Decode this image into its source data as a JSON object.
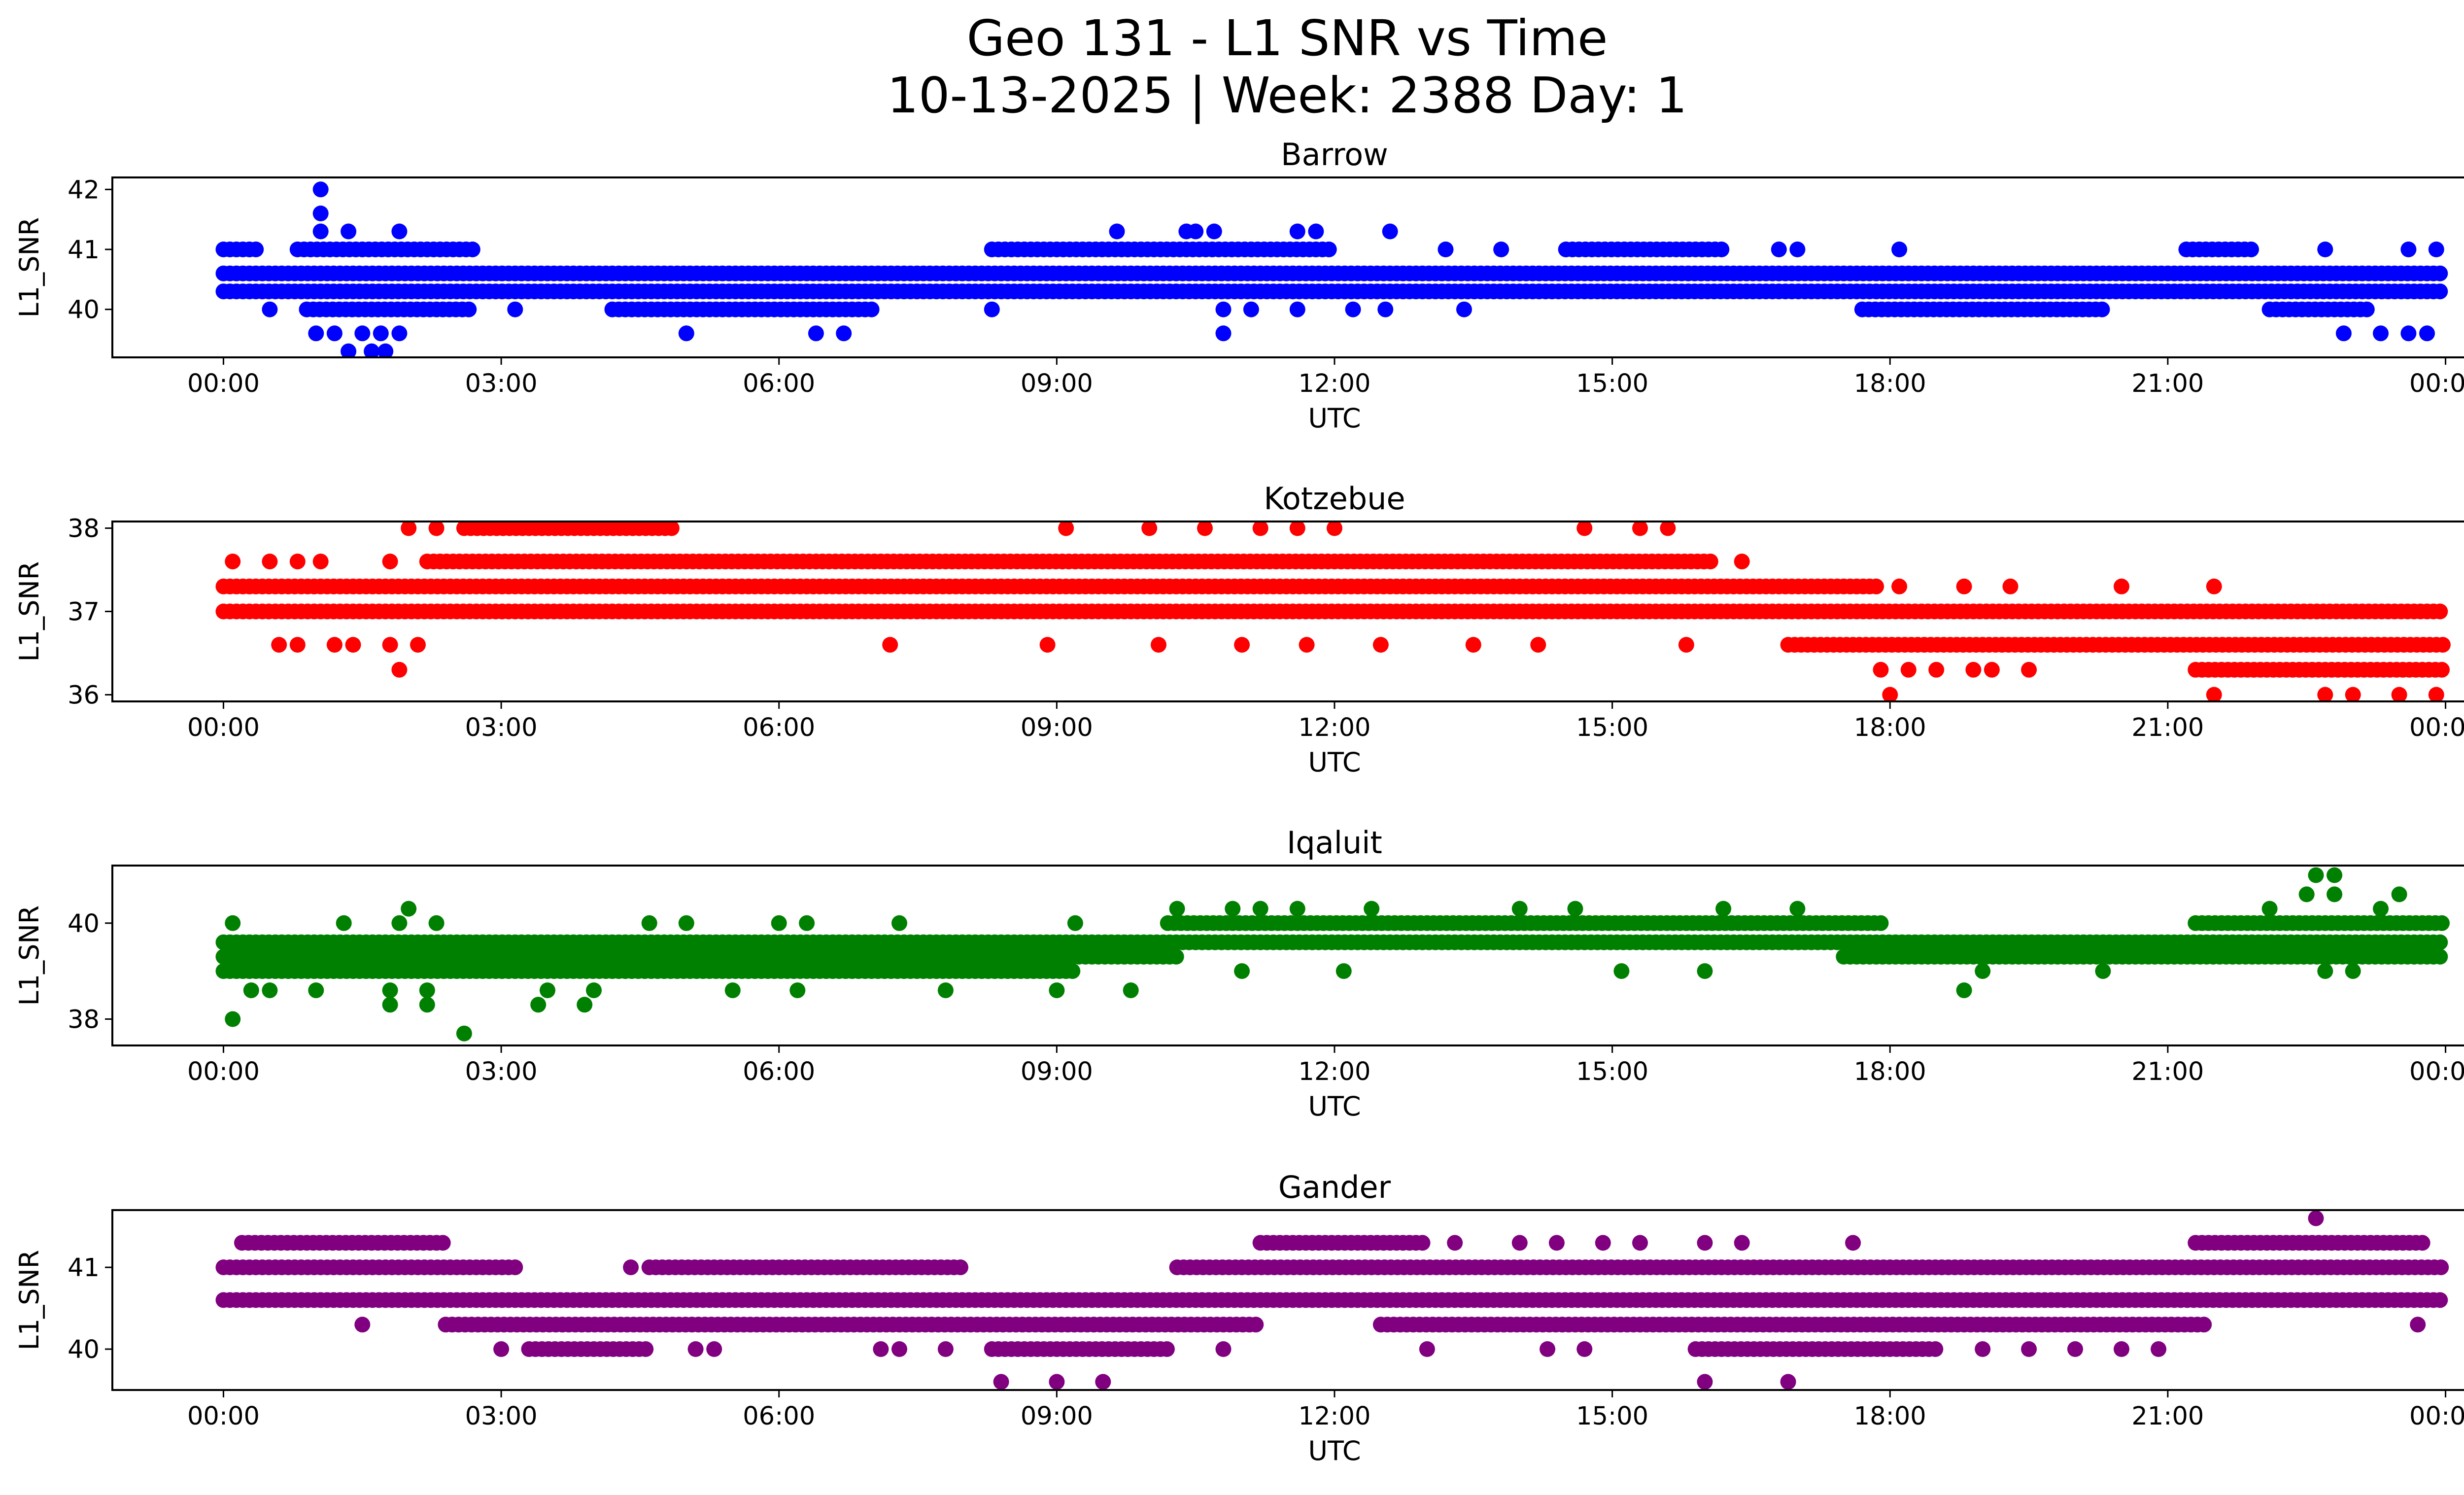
{
  "figure": {
    "title_line1": "Geo 131 - L1 SNR vs Time",
    "title_line2": "10-13-2025 | Week: 2388 Day: 1"
  },
  "chart_data": [
    {
      "type": "scatter",
      "title": "Barrow",
      "xlabel": "UTC",
      "ylabel": "L1_SNR",
      "color": "#0000ff",
      "xlim_hours": [
        -1.2,
        25.2
      ],
      "ylim": [
        39.2,
        42.2
      ],
      "xtick_hours": [
        0,
        3,
        6,
        9,
        12,
        15,
        18,
        21,
        24
      ],
      "xtick_labels": [
        "00:00",
        "03:00",
        "06:00",
        "09:00",
        "12:00",
        "15:00",
        "18:00",
        "21:00",
        "00:00"
      ],
      "yticks": [
        40,
        41,
        42
      ],
      "yticks_labels": [
        "40",
        "41",
        "42"
      ],
      "bands": [
        {
          "y": 40.6,
          "segments": [
            [
              0,
              24
            ]
          ]
        },
        {
          "y": 40.3,
          "segments": [
            [
              0,
              24
            ]
          ]
        },
        {
          "y": 41.0,
          "segments": [
            [
              0,
              0.4
            ],
            [
              0.8,
              2.7
            ],
            [
              8.3,
              12.0
            ],
            [
              14.5,
              16.2
            ],
            [
              21.2,
              21.9
            ]
          ]
        },
        {
          "y": 40.0,
          "segments": [
            [
              0.9,
              2.7
            ],
            [
              4.2,
              7.0
            ],
            [
              17.7,
              20.3
            ],
            [
              22.1,
              23.2
            ]
          ]
        }
      ],
      "points": [
        [
          1.05,
          42.0
        ],
        [
          1.05,
          41.6
        ],
        [
          1.05,
          41.3
        ],
        [
          1.35,
          41.3
        ],
        [
          1.9,
          41.3
        ],
        [
          9.65,
          41.3
        ],
        [
          10.4,
          41.3
        ],
        [
          10.5,
          41.3
        ],
        [
          10.7,
          41.3
        ],
        [
          11.6,
          41.3
        ],
        [
          11.8,
          41.3
        ],
        [
          12.6,
          41.3
        ],
        [
          0.5,
          40.0
        ],
        [
          3.15,
          40.0
        ],
        [
          10.8,
          40.0
        ],
        [
          11.1,
          40.0
        ],
        [
          11.6,
          40.0
        ],
        [
          12.2,
          40.0
        ],
        [
          12.55,
          40.0
        ],
        [
          13.4,
          40.0
        ],
        [
          8.3,
          40.0
        ],
        [
          13.2,
          41.0
        ],
        [
          13.8,
          41.0
        ],
        [
          16.8,
          41.0
        ],
        [
          17.0,
          41.0
        ],
        [
          18.1,
          41.0
        ],
        [
          22.7,
          41.0
        ],
        [
          23.6,
          41.0
        ],
        [
          23.9,
          41.0
        ],
        [
          1.0,
          39.6
        ],
        [
          1.2,
          39.6
        ],
        [
          1.5,
          39.6
        ],
        [
          1.7,
          39.6
        ],
        [
          1.9,
          39.6
        ],
        [
          5.0,
          39.6
        ],
        [
          6.4,
          39.6
        ],
        [
          6.7,
          39.6
        ],
        [
          10.8,
          39.6
        ],
        [
          22.9,
          39.6
        ],
        [
          23.3,
          39.6
        ],
        [
          23.6,
          39.6
        ],
        [
          23.8,
          39.6
        ],
        [
          1.35,
          39.3
        ],
        [
          1.6,
          39.3
        ],
        [
          1.75,
          39.3
        ]
      ]
    },
    {
      "type": "scatter",
      "title": "Kotzebue",
      "xlabel": "UTC",
      "ylabel": "L1_SNR",
      "color": "#ff0000",
      "xlim_hours": [
        -1.2,
        25.2
      ],
      "ylim": [
        35.92,
        38.08
      ],
      "xtick_hours": [
        0,
        3,
        6,
        9,
        12,
        15,
        18,
        21,
        24
      ],
      "xtick_labels": [
        "00:00",
        "03:00",
        "06:00",
        "09:00",
        "12:00",
        "15:00",
        "18:00",
        "21:00",
        "00:00"
      ],
      "yticks": [
        36,
        37,
        38
      ],
      "yticks_labels": [
        "36",
        "37",
        "38"
      ],
      "bands": [
        {
          "y": 37.0,
          "segments": [
            [
              0,
              24
            ]
          ]
        },
        {
          "y": 37.3,
          "segments": [
            [
              0,
              17.9
            ]
          ]
        },
        {
          "y": 37.6,
          "segments": [
            [
              2.2,
              16.1
            ]
          ]
        },
        {
          "y": 36.6,
          "segments": [
            [
              16.9,
              24
            ]
          ]
        },
        {
          "y": 36.3,
          "segments": [
            [
              21.3,
              24
            ]
          ]
        },
        {
          "y": 38.0,
          "segments": [
            [
              2.6,
              4.9
            ]
          ]
        }
      ],
      "points": [
        [
          0.1,
          37.6
        ],
        [
          0.5,
          37.6
        ],
        [
          0.8,
          37.6
        ],
        [
          1.05,
          37.6
        ],
        [
          1.8,
          37.6
        ],
        [
          16.4,
          37.6
        ],
        [
          2.0,
          38.0
        ],
        [
          2.3,
          38.0
        ],
        [
          9.1,
          38.0
        ],
        [
          10.0,
          38.0
        ],
        [
          10.6,
          38.0
        ],
        [
          11.2,
          38.0
        ],
        [
          11.6,
          38.0
        ],
        [
          12.0,
          38.0
        ],
        [
          14.7,
          38.0
        ],
        [
          15.3,
          38.0
        ],
        [
          15.6,
          38.0
        ],
        [
          0.6,
          36.6
        ],
        [
          0.8,
          36.6
        ],
        [
          1.2,
          36.6
        ],
        [
          1.4,
          36.6
        ],
        [
          1.8,
          36.6
        ],
        [
          2.1,
          36.6
        ],
        [
          7.2,
          36.6
        ],
        [
          8.9,
          36.6
        ],
        [
          10.1,
          36.6
        ],
        [
          11.0,
          36.6
        ],
        [
          11.7,
          36.6
        ],
        [
          12.5,
          36.6
        ],
        [
          13.5,
          36.6
        ],
        [
          14.2,
          36.6
        ],
        [
          15.8,
          36.6
        ],
        [
          1.9,
          36.3
        ],
        [
          17.9,
          36.3
        ],
        [
          18.2,
          36.3
        ],
        [
          18.5,
          36.3
        ],
        [
          18.9,
          36.3
        ],
        [
          19.1,
          36.3
        ],
        [
          19.5,
          36.3
        ],
        [
          18.0,
          36.0
        ],
        [
          21.5,
          36.0
        ],
        [
          22.7,
          36.0
        ],
        [
          23.0,
          36.0
        ],
        [
          23.5,
          36.0
        ],
        [
          23.9,
          36.0
        ],
        [
          18.1,
          37.3
        ],
        [
          18.8,
          37.3
        ],
        [
          19.3,
          37.3
        ],
        [
          20.5,
          37.3
        ],
        [
          21.5,
          37.3
        ]
      ]
    },
    {
      "type": "scatter",
      "title": "Iqaluit",
      "xlabel": "UTC",
      "ylabel": "L1_SNR",
      "color": "#008000",
      "xlim_hours": [
        -1.2,
        25.2
      ],
      "ylim": [
        37.45,
        41.2
      ],
      "xtick_hours": [
        0,
        3,
        6,
        9,
        12,
        15,
        18,
        21,
        24
      ],
      "xtick_labels": [
        "00:00",
        "03:00",
        "06:00",
        "09:00",
        "12:00",
        "15:00",
        "18:00",
        "21:00",
        "00:00"
      ],
      "yticks": [
        38,
        40
      ],
      "yticks_labels": [
        "38",
        "40"
      ],
      "bands": [
        {
          "y": 39.6,
          "segments": [
            [
              0,
              24
            ]
          ]
        },
        {
          "y": 39.3,
          "segments": [
            [
              0,
              10.3
            ],
            [
              17.5,
              24
            ]
          ]
        },
        {
          "y": 39.0,
          "segments": [
            [
              0,
              9.2
            ]
          ]
        },
        {
          "y": 40.0,
          "segments": [
            [
              10.2,
              17.9
            ],
            [
              21.3,
              24
            ]
          ]
        }
      ],
      "points": [
        [
          0.1,
          38.0
        ],
        [
          2.6,
          37.7
        ],
        [
          0.3,
          38.6
        ],
        [
          0.5,
          38.6
        ],
        [
          1.0,
          38.6
        ],
        [
          1.8,
          38.6
        ],
        [
          2.2,
          38.6
        ],
        [
          3.5,
          38.6
        ],
        [
          4.0,
          38.6
        ],
        [
          5.5,
          38.6
        ],
        [
          6.2,
          38.6
        ],
        [
          7.8,
          38.6
        ],
        [
          9.0,
          38.6
        ],
        [
          9.8,
          38.6
        ],
        [
          18.8,
          38.6
        ],
        [
          1.8,
          38.3
        ],
        [
          2.2,
          38.3
        ],
        [
          3.4,
          38.3
        ],
        [
          3.9,
          38.3
        ],
        [
          0.1,
          40.0
        ],
        [
          1.3,
          40.0
        ],
        [
          1.9,
          40.0
        ],
        [
          2.3,
          40.0
        ],
        [
          4.6,
          40.0
        ],
        [
          5.0,
          40.0
        ],
        [
          6.0,
          40.0
        ],
        [
          6.3,
          40.0
        ],
        [
          7.3,
          40.0
        ],
        [
          9.2,
          40.0
        ],
        [
          2.0,
          40.3
        ],
        [
          10.3,
          40.3
        ],
        [
          10.9,
          40.3
        ],
        [
          11.2,
          40.3
        ],
        [
          11.6,
          40.3
        ],
        [
          12.4,
          40.3
        ],
        [
          14.0,
          40.3
        ],
        [
          14.6,
          40.3
        ],
        [
          16.2,
          40.3
        ],
        [
          17.0,
          40.3
        ],
        [
          22.1,
          40.3
        ],
        [
          23.3,
          40.3
        ],
        [
          22.5,
          40.6
        ],
        [
          22.8,
          40.6
        ],
        [
          23.5,
          40.6
        ],
        [
          22.6,
          41.0
        ],
        [
          22.8,
          41.0
        ],
        [
          11.0,
          39.0
        ],
        [
          12.1,
          39.0
        ],
        [
          15.1,
          39.0
        ],
        [
          16.0,
          39.0
        ],
        [
          19.0,
          39.0
        ],
        [
          20.3,
          39.0
        ],
        [
          22.7,
          39.0
        ],
        [
          23.0,
          39.0
        ]
      ]
    },
    {
      "type": "scatter",
      "title": "Gander",
      "xlabel": "UTC",
      "ylabel": "L1_SNR",
      "color": "#800080",
      "xlim_hours": [
        -1.2,
        25.2
      ],
      "ylim": [
        39.5,
        41.7
      ],
      "xtick_hours": [
        0,
        3,
        6,
        9,
        12,
        15,
        18,
        21,
        24
      ],
      "xtick_labels": [
        "00:00",
        "03:00",
        "06:00",
        "09:00",
        "12:00",
        "15:00",
        "18:00",
        "21:00",
        "00:00"
      ],
      "yticks": [
        40,
        41
      ],
      "yticks_labels": [
        "40",
        "41"
      ],
      "bands": [
        {
          "y": 40.6,
          "segments": [
            [
              0,
              24
            ]
          ]
        },
        {
          "y": 41.0,
          "segments": [
            [
              0,
              3.2
            ],
            [
              4.6,
              8.0
            ],
            [
              10.3,
              24
            ]
          ]
        },
        {
          "y": 40.3,
          "segments": [
            [
              2.4,
              11.2
            ],
            [
              12.5,
              21.4
            ]
          ]
        },
        {
          "y": 41.3,
          "segments": [
            [
              0.2,
              2.4
            ],
            [
              11.2,
              13.0
            ],
            [
              21.3,
              23.8
            ]
          ]
        },
        {
          "y": 40.0,
          "segments": [
            [
              3.3,
              4.6
            ],
            [
              8.3,
              10.2
            ],
            [
              15.9,
              18.5
            ]
          ]
        }
      ],
      "points": [
        [
          22.6,
          41.6
        ],
        [
          9.0,
          39.6
        ],
        [
          8.4,
          39.6
        ],
        [
          9.5,
          39.6
        ],
        [
          16.0,
          39.6
        ],
        [
          16.9,
          39.6
        ],
        [
          4.4,
          41.0
        ],
        [
          1.5,
          40.3
        ],
        [
          23.7,
          40.3
        ],
        [
          13.3,
          41.3
        ],
        [
          14.0,
          41.3
        ],
        [
          14.4,
          41.3
        ],
        [
          14.9,
          41.3
        ],
        [
          15.3,
          41.3
        ],
        [
          16.0,
          41.3
        ],
        [
          16.4,
          41.3
        ],
        [
          17.6,
          41.3
        ],
        [
          3.0,
          40.0
        ],
        [
          5.1,
          40.0
        ],
        [
          5.3,
          40.0
        ],
        [
          7.1,
          40.0
        ],
        [
          7.3,
          40.0
        ],
        [
          7.8,
          40.0
        ],
        [
          10.8,
          40.0
        ],
        [
          13.0,
          40.0
        ],
        [
          14.3,
          40.0
        ],
        [
          14.7,
          40.0
        ],
        [
          19.0,
          40.0
        ],
        [
          19.5,
          40.0
        ],
        [
          20.0,
          40.0
        ],
        [
          20.5,
          40.0
        ],
        [
          20.9,
          40.0
        ]
      ]
    }
  ]
}
